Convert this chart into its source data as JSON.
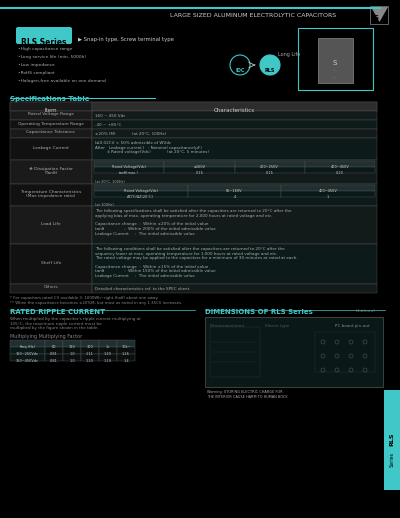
{
  "title_top": "LARGE SIZED ALUMINUM ELECTROLYTIC CAPACITORS",
  "series_name": "RLS Series",
  "series_subtitle": "Snap-in type, Screw terminal type",
  "features": [
    "High capacitance range",
    "Long service life (min. 5000h)",
    "Low impedance",
    "RoHS compliant",
    "Halogen-free available on one demand",
    "Long Life"
  ],
  "spec_title": "Specifications Table",
  "spec_headers": [
    "Item",
    "Characteristics"
  ],
  "spec_rows": [
    [
      "Rated Voltage Range",
      "160 ~ 450 Vdc"
    ],
    [
      "Operating Temperature Range",
      "-40 ~ +85°C"
    ],
    [
      "Capacitance Tolerance",
      "±20% (M)                (at 20°C, 100Hz)"
    ],
    [
      "Leakage Current",
      "I≤0.02CV × 50% admissible ¹ of WVd. II\nAfter    Leakage current I  : Nominal capacitance(μF)\n           k Rated voltage(Vdc)                      (at 20°C, 5 minutes)"
    ],
    [
      "❖ Dissipation Factor\n(Tanδ)",
      ""
    ],
    [
      "Temperature Characteristics\n(Max impedance ratio)",
      ""
    ],
    [
      "Load Life",
      "The following specifications shall be satisfied after the capacitors are returned to 20°C after the\napplying bias of max. operating temperature for 2,000 hours at rated voltage and etc.\nMeasuring voltage may be applied to the capacitors for a minimum of 30 minutes at rated at\neach end but more than of rated voltage for 1 hour.\n\nCapacitance change  :  Within ±20% of the initial value\ntanδ                :  Within 200% of the initial admissible value\nLeakage Current     :  The initial admissible value"
    ],
    [
      "Shelf Life",
      "The following conditions shall be satisfied after the capacitors are returned to 20°C after the\nsequency lower at max. operating temperature for 1,000 hours at rated voltage and etc.\nThe rated voltage may be applied to the capacitors for a minimum of 30 minutes at rated at\neach and last more than of rated voltage for 1 hour at room temperature.\n\nCapacitance change  :  Within ±15% of the initial value\ntanδ                :  Within 150% of the initial admissible value\nLeakage Current     :  The initial admissible value"
    ],
    [
      "Others",
      "Detailed characteristics ref. to the SPEC sheet."
    ]
  ],
  "tan_table_headers": [
    "Rated Voltage(Vdc)",
    "160~250V",
    "400~450V"
  ],
  "tan_table_rows": [
    [
      "tanδ(max.)",
      "0.15",
      "0.20"
    ]
  ],
  "temp_table_headers": [
    "Rated Voltage(Vdc)",
    "85 ~160V",
    "400~450V"
  ],
  "temp_table_rows": [
    [
      "ΔZ(T)/ΔZ(20°C)",
      "4",
      "1"
    ]
  ],
  "rated_current_title": "RATED RIPPLE CURRENT",
  "rated_current_text": "When multiplied by the capacitor's ripple current multiplying at 105°C, the maximum ripple current must be\nmultiplied by the figure shown in the table.",
  "multiplying_title": "Multiplying Multiplying Factor",
  "multiplying_headers": [
    "Freq.(Hz)",
    "60",
    "120",
    "300",
    "1k",
    "10k~"
  ],
  "multiplying_rows": [
    [
      "160~250Vdc",
      "0.81",
      "1.0",
      "1.11",
      "1.20",
      "1.26"
    ],
    [
      "350~450Vdc",
      "0.81",
      "1.0",
      "1.10",
      "1.19",
      "1.4"
    ]
  ],
  "dimension_title": "DIMENSIONS OF RLS Series",
  "dimension_unit": "Unit(mm)",
  "bg_color": "#000000",
  "header_bg": "#7fd9d9",
  "table_header_bg": "#7fd9d9",
  "teal_color": "#40c8c8",
  "light_teal": "#b0e8e8",
  "sidebar_color": "#40c8c8",
  "text_color": "#ffffff",
  "dark_text": "#cccccc",
  "footnote1": "* For capacitors rated CV available 3: 1000Wh~right-(half) about one away.",
  "footnote2": "** When the capacitance becomes ±20%M, but most as noted in any 1.35CV increases.",
  "warning_text": "Warning: STORING ELECTRIC CHARGE FOR\nTHE INTERIOR CAUSE HARM TO HUMAN BODY.",
  "rls_sidebar": "RLS\nSeries"
}
